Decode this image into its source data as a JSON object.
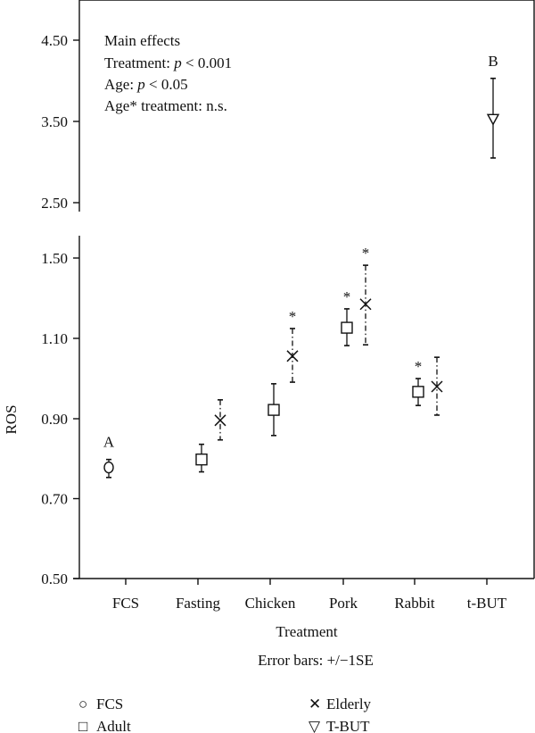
{
  "chart_data": {
    "type": "scatter",
    "title": "",
    "xlabel": "Treatment",
    "ylabel": "ROS",
    "note": "Error bars: +/−1SE",
    "categories": [
      "FCS",
      "Fasting",
      "Chicken",
      "Pork",
      "Rabbit",
      "t-BUT"
    ],
    "top_panel": {
      "yticks": [
        "4.50",
        "3.50",
        "2.50"
      ],
      "ytick_values": [
        4.5,
        3.5,
        2.5
      ],
      "annotation": {
        "title": "Main effects",
        "lines": [
          {
            "prefix": "Treatment: ",
            "p": "p",
            "suffix": " < 0.001"
          },
          {
            "prefix": "Age: ",
            "p": "p",
            "suffix": " < 0.05"
          },
          {
            "prefix": "Age* treatment: n.s.",
            "p": "",
            "suffix": ""
          }
        ]
      }
    },
    "bottom_panel": {
      "yticks": [
        "1.50",
        "1.10",
        "0.90",
        "0.70",
        "0.50"
      ],
      "ytick_values": [
        1.5,
        1.1,
        0.9,
        0.7,
        0.5
      ]
    },
    "series": [
      {
        "name": "FCS",
        "marker": "circle",
        "style": "solid",
        "points": [
          {
            "category": "FCS",
            "y": 0.778,
            "lo": 0.753,
            "hi": 0.798,
            "label": "A"
          }
        ]
      },
      {
        "name": "Adult",
        "marker": "square",
        "style": "solid",
        "points": [
          {
            "category": "Fasting",
            "y": 0.798,
            "lo": 0.767,
            "hi": 0.836,
            "label": ""
          },
          {
            "category": "Chicken",
            "y": 0.922,
            "lo": 0.858,
            "hi": 0.987,
            "label": ""
          },
          {
            "category": "Pork",
            "y": 1.153,
            "lo": 1.082,
            "hi": 1.247,
            "label": "*"
          },
          {
            "category": "Rabbit",
            "y": 0.967,
            "lo": 0.933,
            "hi": 1.0,
            "label": "*"
          }
        ]
      },
      {
        "name": "Elderly",
        "marker": "x",
        "style": "dashdot",
        "points": [
          {
            "category": "Fasting",
            "y": 0.896,
            "lo": 0.847,
            "hi": 0.947,
            "label": ""
          },
          {
            "category": "Chicken",
            "y": 1.056,
            "lo": 0.991,
            "hi": 1.149,
            "label": "*"
          },
          {
            "category": "Pork",
            "y": 1.27,
            "lo": 1.084,
            "hi": 1.464,
            "label": "*"
          },
          {
            "category": "Rabbit",
            "y": 0.98,
            "lo": 0.909,
            "hi": 1.053,
            "label": ""
          }
        ]
      },
      {
        "name": "T-BUT",
        "marker": "triangle-down",
        "style": "solid",
        "points": [
          {
            "category": "t-BUT",
            "y": 3.53,
            "lo": 3.05,
            "hi": 4.03,
            "label": "B"
          }
        ]
      }
    ],
    "legend": [
      {
        "symbol": "○",
        "label": "FCS"
      },
      {
        "symbol": "□",
        "label": "Adult"
      },
      {
        "symbol": "✕",
        "label": "Elderly"
      },
      {
        "symbol": "▽",
        "label": "T-BUT"
      }
    ],
    "legend_position": "bottom",
    "grid": false
  }
}
